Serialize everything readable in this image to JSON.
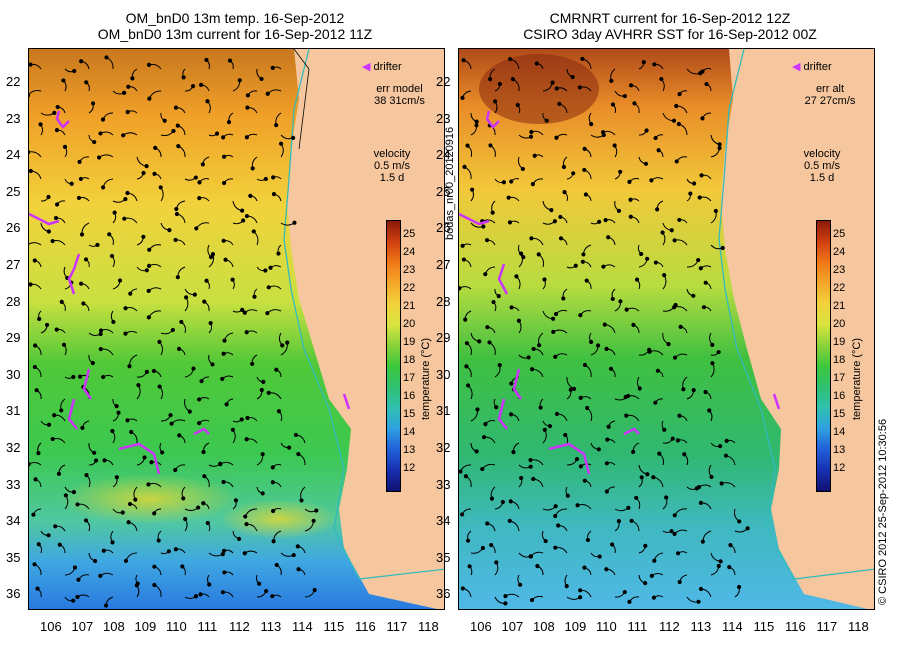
{
  "left": {
    "title_line1": "OM_bnD0 13m temp. 16-Sep-2012",
    "title_line2": "OM_bnD0 13m current for 16-Sep-2012 11Z",
    "err_label": "err model",
    "err_value": "38 31cm/s",
    "velocity_label": "velocity",
    "velocity_value": "0.5 m/s",
    "velocity_days": "1.5 d",
    "drifter_label": "drifter"
  },
  "right": {
    "title_line1": "CMRNRT current for 16-Sep-2012 12Z",
    "title_line2": "CSIRO 3day AVHRR SST for 16-Sep-2012 00Z",
    "err_label": "err alt",
    "err_value": "27 27cm/s",
    "velocity_label": "velocity",
    "velocity_value": "0.5 m/s",
    "velocity_days": "1.5 d",
    "drifter_label": "drifter"
  },
  "lat_ticks": [
    "22",
    "23",
    "24",
    "25",
    "26",
    "27",
    "28",
    "29",
    "30",
    "31",
    "32",
    "33",
    "34",
    "35",
    "36"
  ],
  "lon_ticks": [
    "106",
    "107",
    "108",
    "109",
    "110",
    "111",
    "112",
    "113",
    "114",
    "115",
    "116",
    "117",
    "118"
  ],
  "colorbar": {
    "label": "temperature (°C)",
    "ticks": [
      "25",
      "24",
      "23",
      "22",
      "21",
      "20",
      "19",
      "18",
      "17",
      "16",
      "15",
      "14",
      "13",
      "12"
    ]
  },
  "side_text": {
    "left_vertical": "bodas_nr00_20120916",
    "right_vertical": "© CSIRO 2012   25-Sep-2012 10:30:56"
  },
  "colors": {
    "land": "#f6c79e",
    "coast_line": "#33bbbb",
    "drifter": "#cc33ff",
    "arrows": "#000000"
  }
}
